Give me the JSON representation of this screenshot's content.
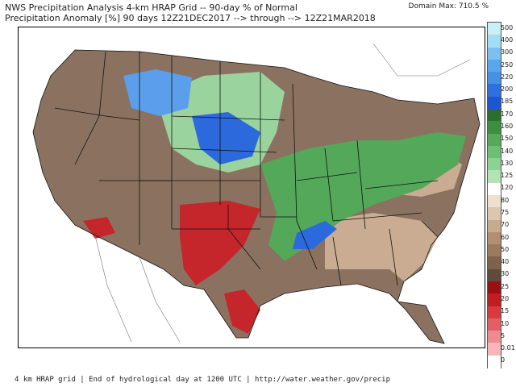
{
  "header": {
    "line1": "NWS Precipitation Analysis 4-km HRAP Grid -- 90-day % of Normal",
    "line2": "Precipitation Anomaly [%] 90 days 12Z21DEC2017 --> through --> 12Z21MAR2018",
    "domain_max": "Domain Max: 710.5 %"
  },
  "footer": "4 km HRAP grid | End of hydrological day at 1200 UTC | http://water.weather.gov/precip",
  "legend": {
    "ticks": [
      "500",
      "400",
      "300",
      "250",
      "220",
      "200",
      "185",
      "170",
      "160",
      "150",
      "140",
      "130",
      "125",
      "120",
      "80",
      "75",
      "70",
      "60",
      "50",
      "40",
      "30",
      "25",
      "20",
      "15",
      "10",
      "5",
      "0.01",
      "0"
    ],
    "colors": [
      "#c9f0f7",
      "#a3dcf5",
      "#7cc0f2",
      "#5aa6ec",
      "#4790e6",
      "#2f6fde",
      "#1d55d5",
      "#2b6f2e",
      "#3b8f3f",
      "#56a85b",
      "#6cbf73",
      "#8ed293",
      "#b1e3b3",
      "#ffffff",
      "#eee0cf",
      "#dcc7ae",
      "#c7ab8d",
      "#b28f71",
      "#9c7a5e",
      "#7e624c",
      "#5f4b3c",
      "#9b0f13",
      "#c21d22",
      "#da3a3f",
      "#e25f66",
      "#f08a91",
      "#f8b6bb",
      "#ffffff"
    ]
  },
  "map": {
    "colors": {
      "dry_red": "#c4262b",
      "brown": "#8b7260",
      "light_brown": "#c9ac91",
      "green": "#53a85a",
      "light_green": "#9bd39e",
      "blue": "#2c69dc",
      "light_blue": "#5a9eec",
      "border": "#111111"
    }
  }
}
